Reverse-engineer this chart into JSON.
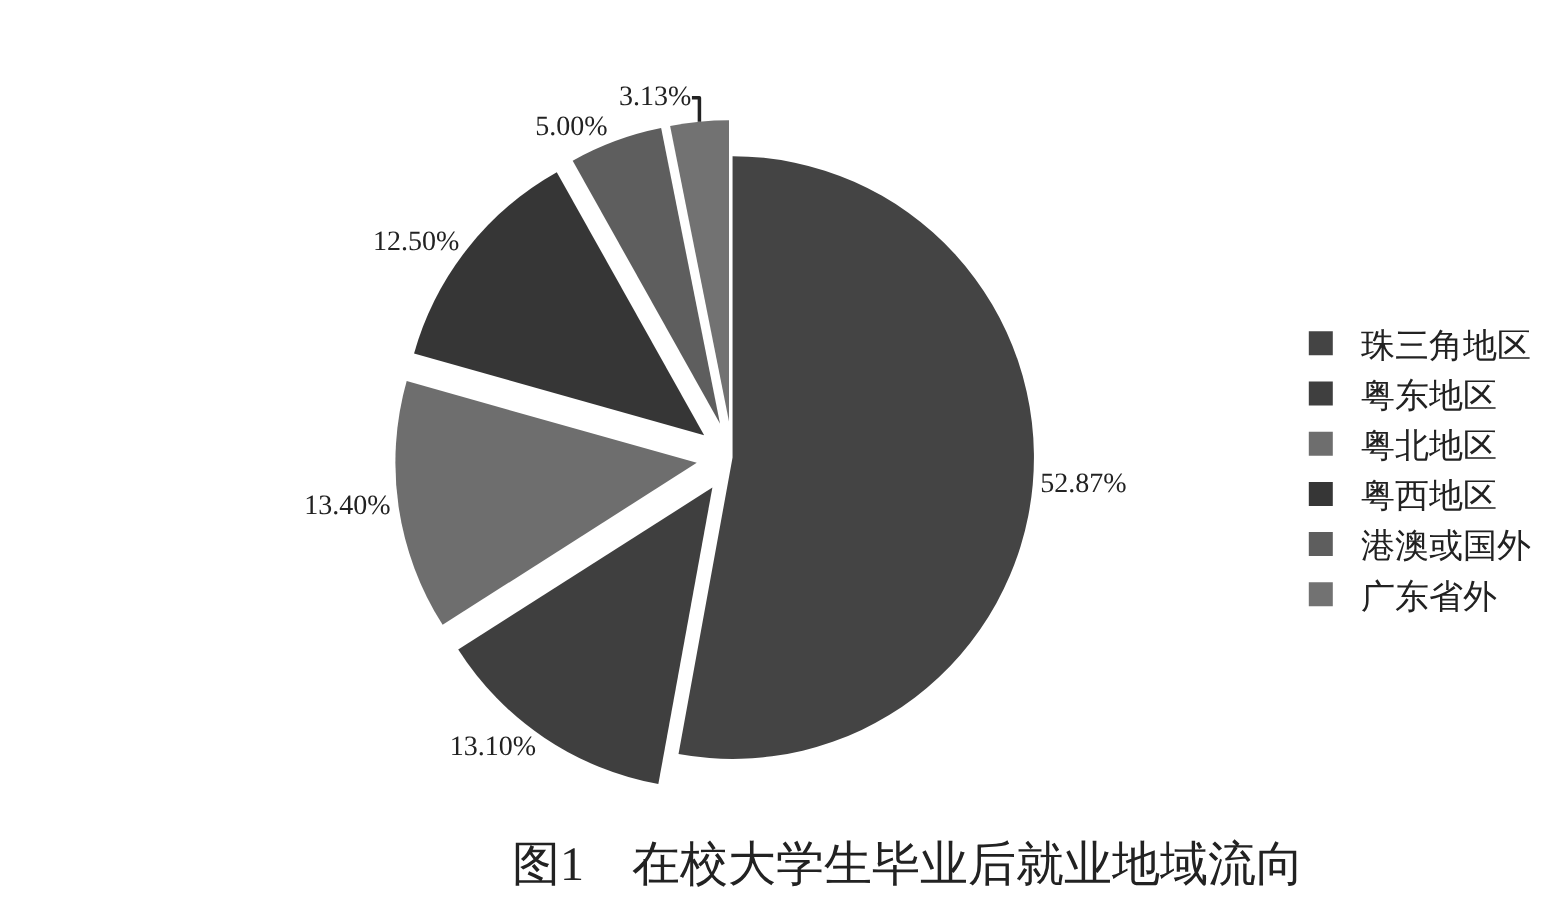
{
  "chart_data": {
    "type": "pie",
    "title": "图1　在校大学生毕业后就业地域流向",
    "categories": [
      "珠三角地区",
      "粤东地区",
      "粤北地区",
      "粤西地区",
      "港澳或国外",
      "广东省外"
    ],
    "values": [
      52.87,
      13.1,
      13.4,
      12.5,
      5.0,
      3.13
    ],
    "colors": [
      "#444444",
      "#3f3f3f",
      "#6e6e6e",
      "#363636",
      "#5e5e5e",
      "#727272"
    ],
    "value_labels": [
      "52.87%",
      "13.10%",
      "13.40%",
      "12.50%",
      "5.00%",
      "3.13%"
    ],
    "legend": "right"
  }
}
